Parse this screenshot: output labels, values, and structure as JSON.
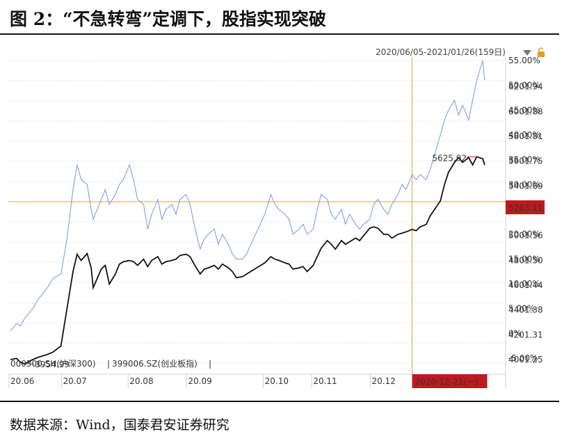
{
  "page": {
    "title": "图 2：“不急转弯”定调下，股指实现突破",
    "source": "数据来源：Wind，国泰君安证券研究"
  },
  "header": {
    "date_range": "2020/06/05-2021/01/26(159日)"
  },
  "legend": {
    "series1": "000300.SH(沪深300)",
    "separator": "|",
    "series2": "399006.SZ(创业板指)",
    "trailing": "|"
  },
  "annotations": {
    "min_label": "3954.99",
    "max_label": "5625.92",
    "cursor_value": "5263.11",
    "cursor_date": "2020-12-21(一)"
  },
  "colors": {
    "series1": "#111111",
    "series2": "#7f9ee8",
    "crosshair": "#f0a030",
    "badge_bg": "#c0181e",
    "max_text": "#d22222",
    "min_text": "#2a8a2a",
    "grid": "#cfd6e4"
  },
  "chart_data": {
    "type": "line",
    "title": "“不急转弯”定调下，股指实现突破",
    "x_ticks": [
      "20.06",
      "20.07",
      "20.08",
      "20.09",
      "20.10",
      "20.11",
      "20.12"
    ],
    "y_left_ticks": [
      "6201.94",
      "6001.88",
      "5801.81",
      "5601.75",
      "5401.69",
      "5201.63",
      "5001.56",
      "4801.50",
      "4601.44",
      "4401.38",
      "4201.31",
      "4001.25"
    ],
    "y_right_ticks": [
      "55.00%",
      "50.00%",
      "45.00%",
      "40.00%",
      "35.00%",
      "30.00%",
      "25.00%",
      "20.00%",
      "15.00%",
      "10.00%",
      "5.00%",
      "0%",
      "-5.00%"
    ],
    "ylim_left": [
      4001.25,
      6401.99
    ],
    "ylim_right": [
      -5,
      55
    ],
    "crosshair": {
      "date": "2020-12-21",
      "value": 5263.11
    },
    "series": [
      {
        "name": "000300.SH(沪深300)",
        "unit": "index points",
        "points": [
          [
            "2020-06-05",
            3990
          ],
          [
            "2020-06-08",
            4000
          ],
          [
            "2020-06-10",
            3970
          ],
          [
            "2020-06-12",
            3954.99
          ],
          [
            "2020-06-16",
            3990
          ],
          [
            "2020-06-19",
            4010
          ],
          [
            "2020-06-23",
            4030
          ],
          [
            "2020-06-26",
            4050
          ],
          [
            "2020-06-30",
            4100
          ],
          [
            "2020-07-03",
            4400
          ],
          [
            "2020-07-06",
            4700
          ],
          [
            "2020-07-08",
            4840
          ],
          [
            "2020-07-10",
            4790
          ],
          [
            "2020-07-13",
            4845
          ],
          [
            "2020-07-15",
            4730
          ],
          [
            "2020-07-16",
            4570
          ],
          [
            "2020-07-20",
            4720
          ],
          [
            "2020-07-22",
            4750
          ],
          [
            "2020-07-24",
            4600
          ],
          [
            "2020-07-27",
            4680
          ],
          [
            "2020-07-29",
            4760
          ],
          [
            "2020-07-31",
            4780
          ],
          [
            "2020-08-03",
            4790
          ],
          [
            "2020-08-05",
            4780
          ],
          [
            "2020-08-07",
            4750
          ],
          [
            "2020-08-10",
            4800
          ],
          [
            "2020-08-12",
            4740
          ],
          [
            "2020-08-14",
            4790
          ],
          [
            "2020-08-17",
            4820
          ],
          [
            "2020-08-19",
            4760
          ],
          [
            "2020-08-21",
            4780
          ],
          [
            "2020-08-24",
            4790
          ],
          [
            "2020-08-26",
            4800
          ],
          [
            "2020-08-28",
            4830
          ],
          [
            "2020-08-31",
            4840
          ],
          [
            "2020-09-02",
            4820
          ],
          [
            "2020-09-04",
            4760
          ],
          [
            "2020-09-07",
            4680
          ],
          [
            "2020-09-09",
            4720
          ],
          [
            "2020-09-11",
            4730
          ],
          [
            "2020-09-14",
            4750
          ],
          [
            "2020-09-16",
            4720
          ],
          [
            "2020-09-18",
            4760
          ],
          [
            "2020-09-21",
            4730
          ],
          [
            "2020-09-23",
            4700
          ],
          [
            "2020-09-25",
            4650
          ],
          [
            "2020-09-28",
            4660
          ],
          [
            "2020-09-30",
            4680
          ],
          [
            "2020-10-09",
            4770
          ],
          [
            "2020-10-12",
            4820
          ],
          [
            "2020-10-14",
            4800
          ],
          [
            "2020-10-16",
            4790
          ],
          [
            "2020-10-19",
            4770
          ],
          [
            "2020-10-21",
            4760
          ],
          [
            "2020-10-23",
            4720
          ],
          [
            "2020-10-26",
            4730
          ],
          [
            "2020-10-28",
            4740
          ],
          [
            "2020-10-30",
            4700
          ],
          [
            "2020-11-02",
            4750
          ],
          [
            "2020-11-04",
            4820
          ],
          [
            "2020-11-06",
            4890
          ],
          [
            "2020-11-09",
            4950
          ],
          [
            "2020-11-11",
            4920
          ],
          [
            "2020-11-13",
            4880
          ],
          [
            "2020-11-16",
            4950
          ],
          [
            "2020-11-18",
            4920
          ],
          [
            "2020-11-20",
            4940
          ],
          [
            "2020-11-23",
            4970
          ],
          [
            "2020-11-25",
            4950
          ],
          [
            "2020-11-27",
            4990
          ],
          [
            "2020-11-30",
            5050
          ],
          [
            "2020-12-02",
            5060
          ],
          [
            "2020-12-04",
            5050
          ],
          [
            "2020-12-07",
            5000
          ],
          [
            "2020-12-09",
            5000
          ],
          [
            "2020-12-11",
            4970
          ],
          [
            "2020-12-14",
            5000
          ],
          [
            "2020-12-16",
            5010
          ],
          [
            "2020-12-18",
            5020
          ],
          [
            "2020-12-21",
            5040
          ],
          [
            "2020-12-23",
            5030
          ],
          [
            "2020-12-25",
            5060
          ],
          [
            "2020-12-28",
            5080
          ],
          [
            "2020-12-30",
            5150
          ],
          [
            "2021-01-04",
            5270
          ],
          [
            "2021-01-06",
            5400
          ],
          [
            "2021-01-08",
            5500
          ],
          [
            "2021-01-11",
            5580
          ],
          [
            "2021-01-13",
            5620
          ],
          [
            "2021-01-15",
            5580
          ],
          [
            "2021-01-18",
            5620
          ],
          [
            "2021-01-20",
            5560
          ],
          [
            "2021-01-22",
            5625.92
          ],
          [
            "2021-01-25",
            5610
          ],
          [
            "2021-01-26",
            5560
          ]
        ]
      },
      {
        "name": "399006.SZ(创业板指)",
        "unit": "percent change",
        "points": [
          [
            "2020-06-05",
            0.5
          ],
          [
            "2020-06-08",
            2
          ],
          [
            "2020-06-10",
            1.5
          ],
          [
            "2020-06-12",
            3
          ],
          [
            "2020-06-16",
            5
          ],
          [
            "2020-06-19",
            7
          ],
          [
            "2020-06-23",
            9
          ],
          [
            "2020-06-26",
            11
          ],
          [
            "2020-06-30",
            12
          ],
          [
            "2020-07-03",
            19
          ],
          [
            "2020-07-06",
            29
          ],
          [
            "2020-07-08",
            34
          ],
          [
            "2020-07-10",
            31
          ],
          [
            "2020-07-13",
            30
          ],
          [
            "2020-07-15",
            25
          ],
          [
            "2020-07-16",
            23
          ],
          [
            "2020-07-20",
            27
          ],
          [
            "2020-07-22",
            29
          ],
          [
            "2020-07-24",
            26
          ],
          [
            "2020-07-27",
            28
          ],
          [
            "2020-07-29",
            30
          ],
          [
            "2020-07-31",
            31
          ],
          [
            "2020-08-03",
            34
          ],
          [
            "2020-08-05",
            31
          ],
          [
            "2020-08-07",
            27
          ],
          [
            "2020-08-10",
            26
          ],
          [
            "2020-08-12",
            21
          ],
          [
            "2020-08-14",
            24
          ],
          [
            "2020-08-17",
            27
          ],
          [
            "2020-08-19",
            23
          ],
          [
            "2020-08-21",
            25
          ],
          [
            "2020-08-24",
            26
          ],
          [
            "2020-08-26",
            24
          ],
          [
            "2020-08-28",
            27
          ],
          [
            "2020-08-31",
            28
          ],
          [
            "2020-09-02",
            26
          ],
          [
            "2020-09-04",
            22
          ],
          [
            "2020-09-07",
            17
          ],
          [
            "2020-09-09",
            19
          ],
          [
            "2020-09-11",
            20
          ],
          [
            "2020-09-14",
            21
          ],
          [
            "2020-09-16",
            18
          ],
          [
            "2020-09-18",
            20
          ],
          [
            "2020-09-21",
            18
          ],
          [
            "2020-09-23",
            16
          ],
          [
            "2020-09-25",
            15
          ],
          [
            "2020-09-28",
            15
          ],
          [
            "2020-09-30",
            16
          ],
          [
            "2020-10-09",
            24
          ],
          [
            "2020-10-12",
            28
          ],
          [
            "2020-10-14",
            26
          ],
          [
            "2020-10-16",
            25
          ],
          [
            "2020-10-19",
            24
          ],
          [
            "2020-10-21",
            23
          ],
          [
            "2020-10-23",
            20
          ],
          [
            "2020-10-26",
            21
          ],
          [
            "2020-10-28",
            22
          ],
          [
            "2020-10-30",
            20
          ],
          [
            "2020-11-02",
            21
          ],
          [
            "2020-11-04",
            25
          ],
          [
            "2020-11-06",
            28
          ],
          [
            "2020-11-09",
            27
          ],
          [
            "2020-11-11",
            24
          ],
          [
            "2020-11-13",
            23
          ],
          [
            "2020-11-16",
            25
          ],
          [
            "2020-11-18",
            22
          ],
          [
            "2020-11-20",
            24
          ],
          [
            "2020-11-23",
            22
          ],
          [
            "2020-11-25",
            21
          ],
          [
            "2020-11-27",
            22
          ],
          [
            "2020-11-30",
            23
          ],
          [
            "2020-12-02",
            26
          ],
          [
            "2020-12-04",
            27
          ],
          [
            "2020-12-07",
            25
          ],
          [
            "2020-12-09",
            24
          ],
          [
            "2020-12-11",
            26
          ],
          [
            "2020-12-14",
            28
          ],
          [
            "2020-12-16",
            30
          ],
          [
            "2020-12-18",
            29
          ],
          [
            "2020-12-21",
            32
          ],
          [
            "2020-12-23",
            31
          ],
          [
            "2020-12-25",
            32
          ],
          [
            "2020-12-28",
            31
          ],
          [
            "2020-12-30",
            33
          ],
          [
            "2021-01-04",
            40
          ],
          [
            "2021-01-06",
            43
          ],
          [
            "2021-01-08",
            45
          ],
          [
            "2021-01-11",
            47
          ],
          [
            "2021-01-13",
            44
          ],
          [
            "2021-01-15",
            46
          ],
          [
            "2021-01-18",
            43
          ],
          [
            "2021-01-20",
            47
          ],
          [
            "2021-01-22",
            51
          ],
          [
            "2021-01-25",
            55
          ],
          [
            "2021-01-26",
            51
          ]
        ]
      }
    ]
  }
}
